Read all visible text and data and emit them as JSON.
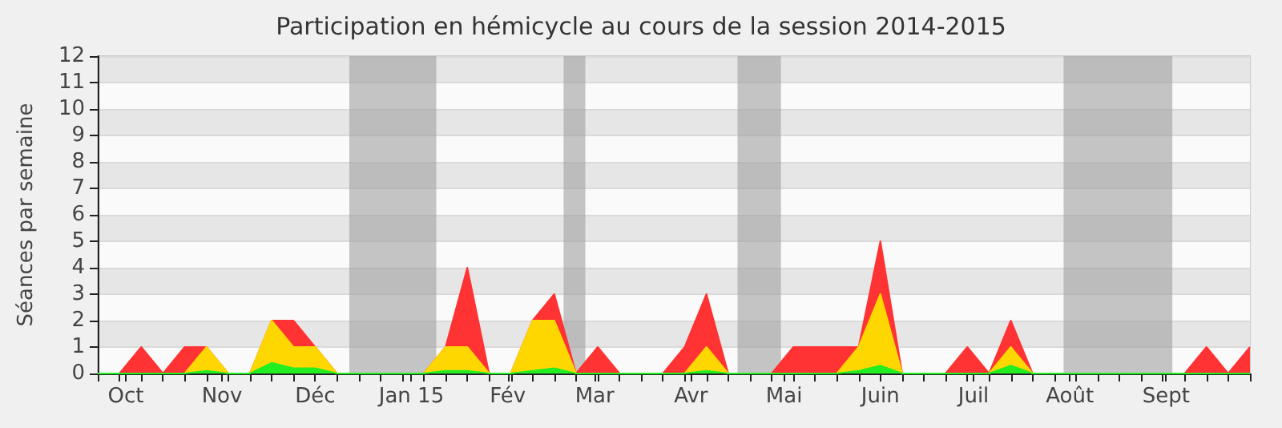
{
  "chart_data": {
    "type": "area",
    "title": "Participation en hémicycle au cours de la session 2014-2015",
    "ylabel": "Séances par semaine",
    "stacked": true,
    "x": [
      "2014-09-22",
      "2014-09-29",
      "2014-10-06",
      "2014-10-13",
      "2014-10-20",
      "2014-10-27",
      "2014-11-03",
      "2014-11-10",
      "2014-11-17",
      "2014-11-24",
      "2014-12-01",
      "2014-12-08",
      "2014-12-15",
      "2014-12-22",
      "2014-12-29",
      "2015-01-05",
      "2015-01-12",
      "2015-01-19",
      "2015-01-26",
      "2015-02-02",
      "2015-02-09",
      "2015-02-16",
      "2015-02-23",
      "2015-03-02",
      "2015-03-09",
      "2015-03-16",
      "2015-03-23",
      "2015-03-30",
      "2015-04-06",
      "2015-04-13",
      "2015-04-20",
      "2015-04-27",
      "2015-05-04",
      "2015-05-11",
      "2015-05-18",
      "2015-05-25",
      "2015-06-01",
      "2015-06-08",
      "2015-06-15",
      "2015-06-22",
      "2015-06-29",
      "2015-07-06",
      "2015-07-13",
      "2015-07-20",
      "2015-07-27",
      "2015-08-03",
      "2015-08-10",
      "2015-08-17",
      "2015-08-24",
      "2015-08-31",
      "2015-09-07",
      "2015-09-14",
      "2015-09-21",
      "2015-09-28"
    ],
    "series": [
      {
        "color": "#22ee22",
        "values": [
          0,
          0,
          0,
          0,
          0,
          0.1,
          0,
          0,
          0.4,
          0.2,
          0.2,
          0,
          0,
          0,
          0,
          0,
          0.1,
          0.1,
          0,
          0,
          0.1,
          0.2,
          0,
          0,
          0,
          0,
          0,
          0,
          0.1,
          0,
          0,
          0,
          0,
          0,
          0,
          0.1,
          0.3,
          0,
          0,
          0,
          0,
          0,
          0.3,
          0,
          0,
          0,
          0,
          0,
          0,
          0,
          0,
          0,
          0,
          0
        ]
      },
      {
        "color": "#ffd700",
        "values": [
          0,
          0,
          0,
          0,
          0,
          0.9,
          0,
          0,
          1.6,
          0.8,
          0.8,
          0,
          0,
          0,
          0,
          0,
          0.9,
          0.9,
          0,
          0,
          1.9,
          1.8,
          0,
          0,
          0,
          0,
          0,
          0,
          0.9,
          0,
          0,
          0,
          0,
          0,
          0,
          0.9,
          2.7,
          0,
          0,
          0,
          0,
          0,
          0.7,
          0,
          0,
          0,
          0,
          0,
          0,
          0,
          0,
          0,
          0,
          0
        ]
      },
      {
        "color": "#ff3333",
        "values": [
          0,
          0,
          1,
          0,
          1,
          0,
          0,
          0,
          0,
          1,
          0,
          0,
          0,
          0,
          0,
          0,
          0,
          3,
          0,
          0,
          0,
          1,
          0,
          1,
          0,
          0,
          0,
          1,
          2,
          0,
          0,
          0,
          1,
          1,
          1,
          0,
          2,
          0,
          0,
          0,
          1,
          0,
          1,
          0,
          0,
          0,
          0,
          0,
          0,
          0,
          0,
          1,
          0,
          1
        ]
      }
    ],
    "xlim": [
      "2014-09-22",
      "2015-09-28"
    ],
    "xticks": [
      {
        "value": "2014-09-22",
        "label": null
      },
      {
        "value": "2014-09-29",
        "label": null
      },
      {
        "value": "2014-10-01",
        "label": "Oct"
      },
      {
        "value": "2014-10-06",
        "label": null
      },
      {
        "value": "2014-10-13",
        "label": null
      },
      {
        "value": "2014-10-20",
        "label": null
      },
      {
        "value": "2014-10-27",
        "label": null
      },
      {
        "value": "2014-11-01",
        "label": "Nov"
      },
      {
        "value": "2014-11-03",
        "label": null
      },
      {
        "value": "2014-11-10",
        "label": null
      },
      {
        "value": "2014-11-17",
        "label": null
      },
      {
        "value": "2014-11-24",
        "label": null
      },
      {
        "value": "2014-12-01",
        "label": "Déc"
      },
      {
        "value": "2014-12-08",
        "label": null
      },
      {
        "value": "2014-12-15",
        "label": null
      },
      {
        "value": "2014-12-22",
        "label": null
      },
      {
        "value": "2014-12-29",
        "label": null
      },
      {
        "value": "2015-01-01",
        "label": "Jan 15"
      },
      {
        "value": "2015-01-05",
        "label": null
      },
      {
        "value": "2015-01-12",
        "label": null
      },
      {
        "value": "2015-01-19",
        "label": null
      },
      {
        "value": "2015-01-26",
        "label": null
      },
      {
        "value": "2015-02-01",
        "label": "Fév"
      },
      {
        "value": "2015-02-02",
        "label": null
      },
      {
        "value": "2015-02-09",
        "label": null
      },
      {
        "value": "2015-02-16",
        "label": null
      },
      {
        "value": "2015-02-23",
        "label": null
      },
      {
        "value": "2015-03-01",
        "label": "Mar"
      },
      {
        "value": "2015-03-02",
        "label": null
      },
      {
        "value": "2015-03-09",
        "label": null
      },
      {
        "value": "2015-03-16",
        "label": null
      },
      {
        "value": "2015-03-23",
        "label": null
      },
      {
        "value": "2015-03-30",
        "label": null
      },
      {
        "value": "2015-04-01",
        "label": "Avr"
      },
      {
        "value": "2015-04-06",
        "label": null
      },
      {
        "value": "2015-04-13",
        "label": null
      },
      {
        "value": "2015-04-20",
        "label": null
      },
      {
        "value": "2015-04-27",
        "label": null
      },
      {
        "value": "2015-05-01",
        "label": "Mai"
      },
      {
        "value": "2015-05-04",
        "label": null
      },
      {
        "value": "2015-05-11",
        "label": null
      },
      {
        "value": "2015-05-18",
        "label": null
      },
      {
        "value": "2015-05-25",
        "label": null
      },
      {
        "value": "2015-06-01",
        "label": "Juin"
      },
      {
        "value": "2015-06-08",
        "label": null
      },
      {
        "value": "2015-06-15",
        "label": null
      },
      {
        "value": "2015-06-22",
        "label": null
      },
      {
        "value": "2015-06-29",
        "label": null
      },
      {
        "value": "2015-07-01",
        "label": "Juil"
      },
      {
        "value": "2015-07-06",
        "label": null
      },
      {
        "value": "2015-07-13",
        "label": null
      },
      {
        "value": "2015-07-20",
        "label": null
      },
      {
        "value": "2015-07-27",
        "label": null
      },
      {
        "value": "2015-08-01",
        "label": "Août"
      },
      {
        "value": "2015-08-03",
        "label": null
      },
      {
        "value": "2015-08-10",
        "label": null
      },
      {
        "value": "2015-08-17",
        "label": null
      },
      {
        "value": "2015-08-24",
        "label": null
      },
      {
        "value": "2015-08-31",
        "label": null
      },
      {
        "value": "2015-09-01",
        "label": "Sept"
      },
      {
        "value": "2015-09-07",
        "label": null
      },
      {
        "value": "2015-09-14",
        "label": null
      },
      {
        "value": "2015-09-21",
        "label": null
      },
      {
        "value": "2015-09-28",
        "label": null
      }
    ],
    "ylim": [
      0,
      12
    ],
    "yticks": [
      0,
      1,
      2,
      3,
      4,
      5,
      6,
      7,
      8,
      9,
      10,
      11,
      12
    ],
    "grid": "y",
    "marker": "none",
    "bands": [
      {
        "axis": "x",
        "from": "2014-12-12",
        "to": "2015-01-09",
        "color": "#a0a0a0"
      },
      {
        "axis": "x",
        "from": "2015-02-19",
        "to": "2015-02-26",
        "color": "#a0a0a0"
      },
      {
        "axis": "x",
        "from": "2015-04-16",
        "to": "2015-04-30",
        "color": "#a0a0a0"
      },
      {
        "axis": "x",
        "from": "2015-07-30",
        "to": "2015-09-03",
        "color": "#a0a0a0"
      }
    ]
  }
}
